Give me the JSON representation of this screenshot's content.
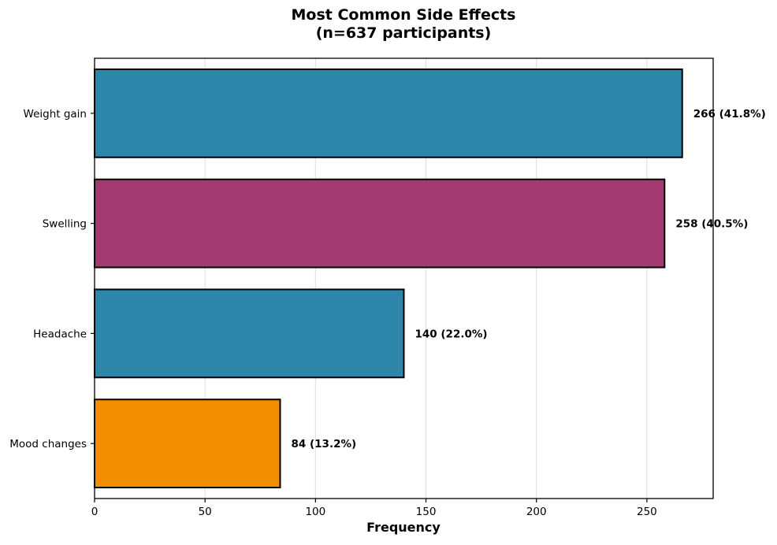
{
  "chart_data": {
    "type": "bar",
    "orientation": "horizontal",
    "title": "Most Common Side Effects",
    "subtitle": "(n=637 participants)",
    "xlabel": "Frequency",
    "ylabel": "",
    "xlim": [
      0,
      280
    ],
    "xticks": [
      0,
      50,
      100,
      150,
      200,
      250
    ],
    "grid": "vertical",
    "categories": [
      "Weight gain",
      "Swelling",
      "Headache",
      "Mood changes"
    ],
    "values": [
      266,
      258,
      140,
      84
    ],
    "value_labels": [
      "266 (41.8%)",
      "258 (40.5%)",
      "140 (22.0%)",
      "84 (13.2%)"
    ],
    "colors": [
      "#2e86ab",
      "#a23b72",
      "#2e86ab",
      "#f18f01"
    ]
  }
}
